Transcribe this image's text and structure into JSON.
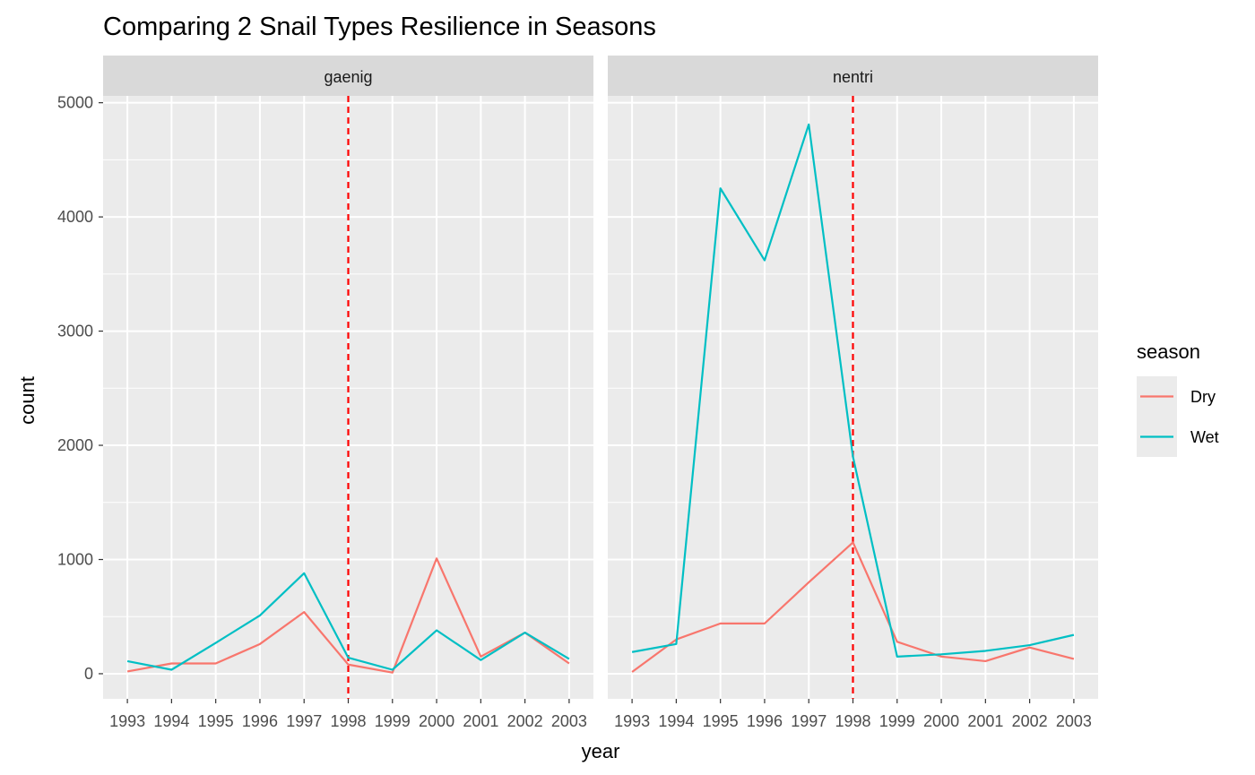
{
  "chart_data": {
    "type": "line",
    "title": "Comparing 2 Snail Types Resilience in Seasons",
    "xlabel": "year",
    "ylabel": "count",
    "x": [
      1993,
      1994,
      1995,
      1996,
      1997,
      1998,
      1999,
      2000,
      2001,
      2002,
      2003
    ],
    "x_tick_labels": [
      "1993",
      "1994",
      "1995",
      "1996",
      "1997",
      "1998",
      "1999",
      "2000",
      "2001",
      "2002",
      "2003"
    ],
    "y_ticks": [
      0,
      1000,
      2000,
      3000,
      4000,
      5000
    ],
    "y_tick_labels": [
      "0",
      "1000",
      "2000",
      "3000",
      "4000",
      "5000"
    ],
    "ylim": [
      -220,
      5060
    ],
    "xlim": [
      1992.45,
      2003.55
    ],
    "grid": true,
    "reference_line": {
      "x": 1998,
      "color": "#ff0000",
      "style": "dashed"
    },
    "legend": {
      "title": "season",
      "position": "right",
      "entries": [
        {
          "label": "Dry",
          "color": "#f8766d"
        },
        {
          "label": "Wet",
          "color": "#00bfc4"
        }
      ]
    },
    "facets": [
      {
        "label": "gaenig",
        "series": [
          {
            "name": "Dry",
            "color": "#f8766d",
            "values": [
              20,
              90,
              90,
              260,
              540,
              80,
              10,
              1010,
              150,
              360,
              90
            ]
          },
          {
            "name": "Wet",
            "color": "#00bfc4",
            "values": [
              110,
              35,
              270,
              510,
              880,
              140,
              35,
              380,
              120,
              360,
              130
            ]
          }
        ]
      },
      {
        "label": "nentri",
        "series": [
          {
            "name": "Dry",
            "color": "#f8766d",
            "values": [
              15,
              300,
              440,
              440,
              800,
              1150,
              280,
              150,
              110,
              230,
              130
            ]
          },
          {
            "name": "Wet",
            "color": "#00bfc4",
            "values": [
              190,
              260,
              4250,
              3620,
              4810,
              1900,
              150,
              170,
              200,
              250,
              340
            ]
          }
        ]
      }
    ]
  }
}
